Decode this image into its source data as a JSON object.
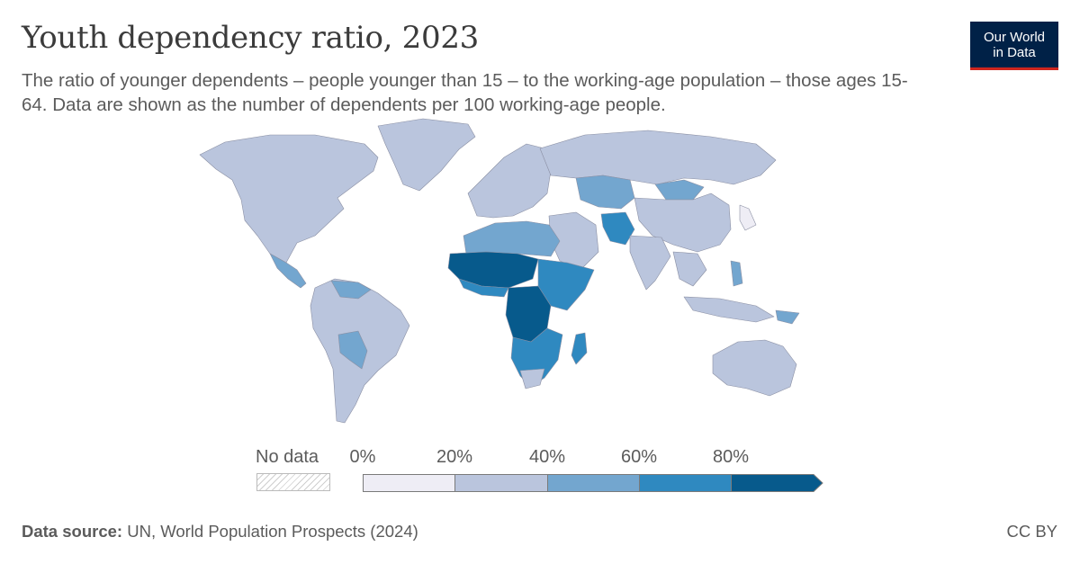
{
  "header": {
    "title": "Youth dependency ratio, 2023",
    "subtitle": "The ratio of younger dependents – people younger than 15 – to the working-age population – those ages 15-64. Data are shown as the number of dependents per 100 working-age people."
  },
  "logo": {
    "line1": "Our World",
    "line2": "in Data"
  },
  "legend": {
    "no_data_label": "No data",
    "ticks": [
      "0%",
      "20%",
      "40%",
      "60%",
      "80%"
    ],
    "bins": [
      {
        "range": "0-20",
        "color": "#eeedf5"
      },
      {
        "range": "20-40",
        "color": "#bac5dd"
      },
      {
        "range": "40-60",
        "color": "#73a6cf"
      },
      {
        "range": "60-80",
        "color": "#2f89c0"
      },
      {
        "range": "80+",
        "color": "#075a8c"
      }
    ]
  },
  "footer": {
    "source_label": "Data source:",
    "source_text": "UN, World Population Prospects (2024)",
    "license": "CC BY"
  },
  "colors": {
    "bin_20_40": "#bac5dd",
    "bin_40_60": "#73a6cf",
    "bin_60_80": "#2f89c0",
    "bin_80_plus": "#075a8c",
    "logo_bg": "#002147",
    "logo_accent": "#ce261e"
  }
}
